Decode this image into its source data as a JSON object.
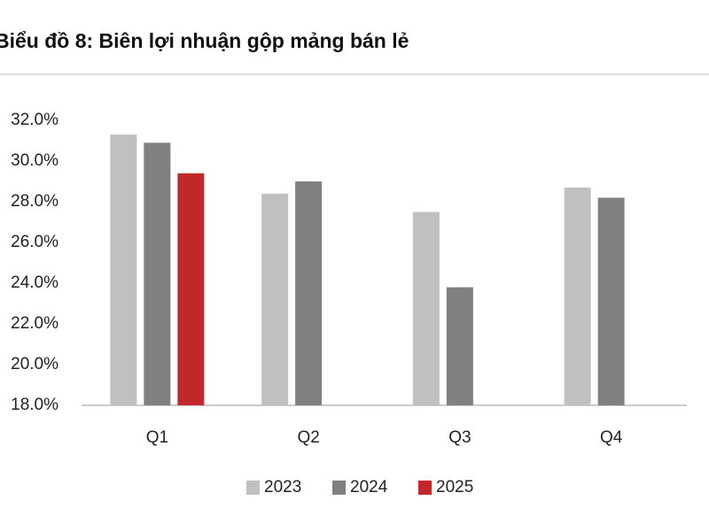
{
  "chart_data": {
    "type": "bar",
    "title": "Biểu đồ 8: Biên lợi nhuận gộp mảng bán lẻ",
    "categories": [
      "Q1",
      "Q2",
      "Q3",
      "Q4"
    ],
    "series": [
      {
        "name": "2023",
        "color": "#c0c0c0",
        "values": [
          31.3,
          28.4,
          27.5,
          28.7
        ]
      },
      {
        "name": "2024",
        "color": "#808080",
        "values": [
          30.9,
          29.0,
          23.8,
          28.2
        ]
      },
      {
        "name": "2025",
        "color": "#c0282a",
        "values": [
          29.4,
          null,
          null,
          null
        ]
      }
    ],
    "ylim": [
      18,
      32
    ],
    "yticks": [
      {
        "value": 18,
        "label": "18.0%"
      },
      {
        "value": 20,
        "label": "20.0%"
      },
      {
        "value": 22,
        "label": "22.0%"
      },
      {
        "value": 24,
        "label": "24.0%"
      },
      {
        "value": 26,
        "label": "26.0%"
      },
      {
        "value": 28,
        "label": "28.0%"
      },
      {
        "value": 30,
        "label": "30.0%"
      },
      {
        "value": 32,
        "label": "32.0%"
      }
    ],
    "grid": false,
    "legend": "bottom"
  }
}
